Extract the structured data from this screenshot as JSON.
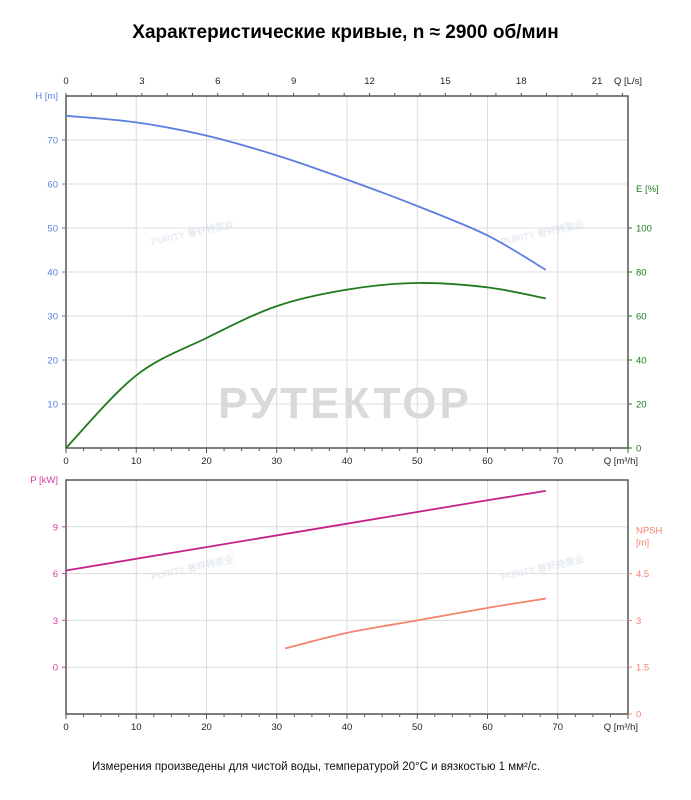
{
  "title": "Характеристические кривые, n ≈ 2900 об/мин",
  "footnote": "Измерения произведены для чистой воды, температурой 20°C и вязкостью 1 мм²/с.",
  "watermarks": [
    "PURITY 普轩特泵业",
    "PURITY 普轩特泵业",
    "PURITY 普轩特泵业",
    "PURITY 普轩特泵业",
    "РУТЕКТОР"
  ],
  "chart_data": [
    {
      "type": "line",
      "xlabel": "Q [m³/h]",
      "x2label": "Q [L/s]",
      "xlim": [
        0,
        80
      ],
      "xticks": [
        0,
        10,
        20,
        30,
        40,
        50,
        60,
        70
      ],
      "x2ticks": [
        0,
        3,
        6,
        9,
        12,
        15,
        18,
        21
      ],
      "grid": true,
      "axes": {
        "H": {
          "label": "H [m]",
          "side": "left",
          "ylim": [
            0,
            80
          ],
          "ticks": [
            10,
            20,
            30,
            40,
            50,
            60,
            70
          ],
          "color": "#5b7fe0"
        },
        "E": {
          "label": "E [%]",
          "side": "right",
          "ylim": [
            0,
            160
          ],
          "ticks": [
            0,
            20,
            40,
            60,
            80,
            100
          ],
          "color": "#1e7a1e"
        }
      },
      "series": [
        {
          "axis": "H",
          "color": "#5b7fe0",
          "x": [
            0,
            10,
            20,
            30,
            40,
            50,
            60,
            68.3
          ],
          "y": [
            75.5,
            74,
            71,
            66.5,
            61,
            55,
            48.3,
            40.5
          ]
        },
        {
          "axis": "E",
          "color": "#1e7a1e",
          "x": [
            0,
            10,
            20,
            30,
            40,
            50,
            60,
            68.3
          ],
          "y": [
            0,
            33,
            50,
            64.5,
            72,
            75,
            73,
            68
          ]
        }
      ]
    },
    {
      "type": "line",
      "xlabel": "Q [m³/h]",
      "xlim": [
        0,
        80
      ],
      "xticks": [
        0,
        10,
        20,
        30,
        40,
        50,
        60,
        70
      ],
      "grid": true,
      "axes": {
        "P": {
          "label": "P [kW]",
          "side": "left",
          "ylim": [
            -3,
            12
          ],
          "ticks": [
            0,
            3,
            6,
            9
          ],
          "color": "#d63a9e"
        },
        "NPSH": {
          "label": "NPSH [m]",
          "side": "right",
          "ylim": [
            0,
            7.5
          ],
          "ticks": [
            0,
            1.5,
            3,
            4.5
          ],
          "color": "#f4846e"
        }
      },
      "series": [
        {
          "axis": "P",
          "color": "#c81f8f",
          "x": [
            0,
            20,
            40,
            60,
            68.3
          ],
          "y": [
            6.2,
            7.7,
            9.2,
            10.7,
            11.3
          ]
        },
        {
          "axis": "NPSH",
          "color": "#f4846e",
          "x": [
            31.2,
            40,
            50,
            60,
            68.3
          ],
          "y": [
            2.1,
            2.6,
            3.0,
            3.4,
            3.7
          ]
        }
      ]
    }
  ]
}
